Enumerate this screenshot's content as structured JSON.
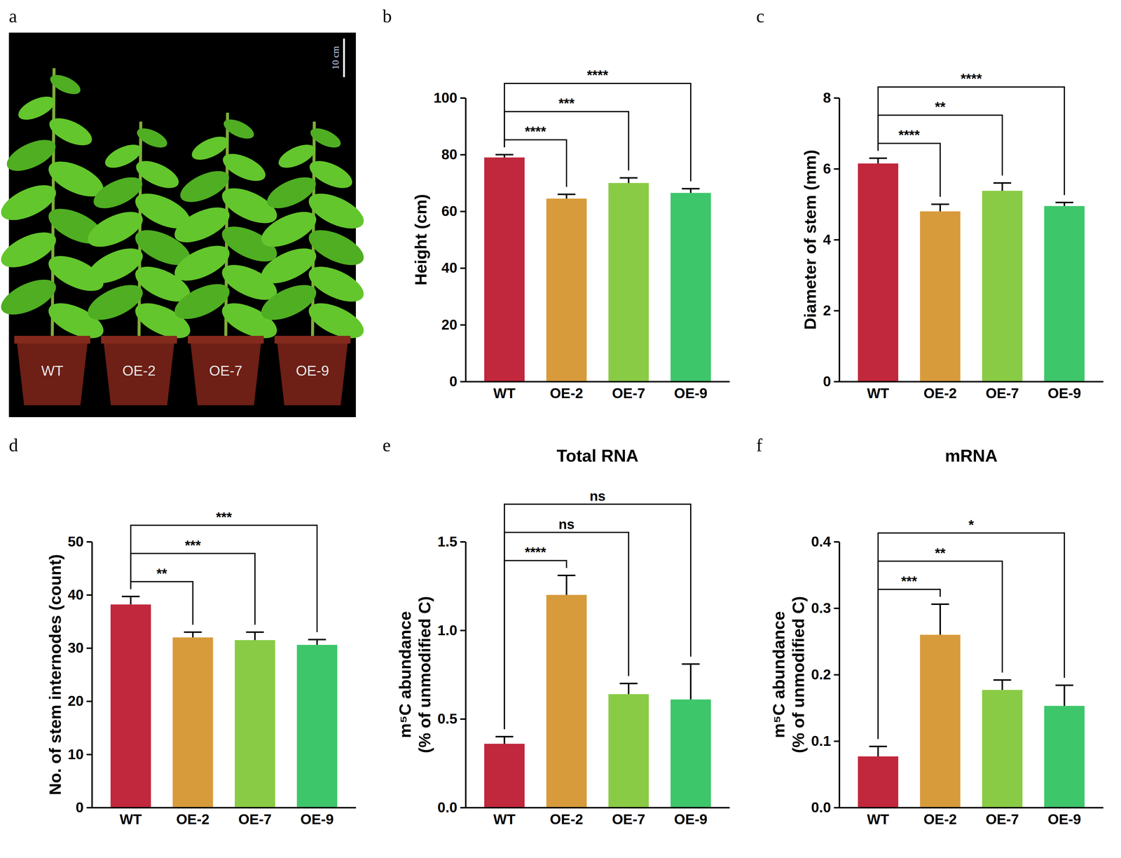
{
  "chart_data": [
    {
      "type": "photo",
      "panel": "a",
      "labels": [
        "WT",
        "OE-2",
        "OE-7",
        "OE-9"
      ],
      "scale_bar": "10 cm"
    },
    {
      "type": "bar",
      "panel": "b",
      "ylabel": "Height (cm)",
      "categories": [
        "WT",
        "OE-2",
        "OE-7",
        "OE-9"
      ],
      "values": [
        79,
        64.5,
        70,
        66.5
      ],
      "errors": [
        1,
        1.5,
        1.8,
        1.5
      ],
      "colors": [
        "#c1273d",
        "#d89b3b",
        "#8acb45",
        "#3ec66b"
      ],
      "ylim": [
        0,
        100
      ],
      "yticks": [
        0,
        20,
        40,
        60,
        80,
        100
      ],
      "grid": false,
      "annotations": [
        {
          "from": "WT",
          "to": "OE-2",
          "label": "****"
        },
        {
          "from": "WT",
          "to": "OE-7",
          "label": "***"
        },
        {
          "from": "WT",
          "to": "OE-9",
          "label": "****"
        }
      ]
    },
    {
      "type": "bar",
      "panel": "c",
      "ylabel": "Diameter of stem (mm)",
      "categories": [
        "WT",
        "OE-2",
        "OE-7",
        "OE-9"
      ],
      "values": [
        6.15,
        4.8,
        5.38,
        4.95
      ],
      "errors": [
        0.15,
        0.2,
        0.22,
        0.1
      ],
      "colors": [
        "#c1273d",
        "#d89b3b",
        "#8acb45",
        "#3ec66b"
      ],
      "ylim": [
        0,
        8
      ],
      "yticks": [
        0,
        2,
        4,
        6,
        8
      ],
      "grid": false,
      "annotations": [
        {
          "from": "WT",
          "to": "OE-2",
          "label": "****"
        },
        {
          "from": "WT",
          "to": "OE-7",
          "label": "**"
        },
        {
          "from": "WT",
          "to": "OE-9",
          "label": "****"
        }
      ]
    },
    {
      "type": "bar",
      "panel": "d",
      "ylabel": "No. of stem internodes (count)",
      "categories": [
        "WT",
        "OE-2",
        "OE-7",
        "OE-9"
      ],
      "values": [
        38.2,
        32,
        31.5,
        30.6
      ],
      "errors": [
        1.5,
        1,
        1.5,
        1
      ],
      "colors": [
        "#c1273d",
        "#d89b3b",
        "#8acb45",
        "#3ec66b"
      ],
      "ylim": [
        0,
        50
      ],
      "yticks": [
        0,
        10,
        20,
        30,
        40,
        50
      ],
      "grid": false,
      "annotations": [
        {
          "from": "WT",
          "to": "OE-2",
          "label": "**"
        },
        {
          "from": "WT",
          "to": "OE-7",
          "label": "***"
        },
        {
          "from": "WT",
          "to": "OE-9",
          "label": "***"
        }
      ]
    },
    {
      "type": "bar",
      "panel": "e",
      "title": "Total RNA",
      "ylabel": [
        "m⁵C abundance",
        "(% of unmodified C)"
      ],
      "categories": [
        "WT",
        "OE-2",
        "OE-7",
        "OE-9"
      ],
      "values": [
        0.36,
        1.2,
        0.64,
        0.61
      ],
      "errors": [
        0.04,
        0.11,
        0.06,
        0.2
      ],
      "colors": [
        "#c1273d",
        "#d89b3b",
        "#8acb45",
        "#3ec66b"
      ],
      "ylim": [
        0,
        1.5
      ],
      "yticks": [
        {
          "value": 0,
          "label": "0.0"
        },
        0.5,
        {
          "value": 1,
          "label": "1.0"
        },
        1.5
      ],
      "grid": false,
      "annotations": [
        {
          "from": "WT",
          "to": "OE-2",
          "label": "****"
        },
        {
          "from": "WT",
          "to": "OE-7",
          "label": "ns"
        },
        {
          "from": "WT",
          "to": "OE-9",
          "label": "ns"
        }
      ]
    },
    {
      "type": "bar",
      "panel": "f",
      "title": "mRNA",
      "ylabel": [
        "m⁵C abundance",
        "(% of unmodified C)"
      ],
      "categories": [
        "WT",
        "OE-2",
        "OE-7",
        "OE-9"
      ],
      "values": [
        0.077,
        0.26,
        0.177,
        0.153
      ],
      "errors": [
        0.015,
        0.046,
        0.015,
        0.031
      ],
      "colors": [
        "#c1273d",
        "#d89b3b",
        "#8acb45",
        "#3ec66b"
      ],
      "ylim": [
        0,
        0.4
      ],
      "yticks": [
        {
          "value": 0,
          "label": "0.0"
        },
        0.1,
        0.2,
        0.3,
        0.4
      ],
      "grid": false,
      "annotations": [
        {
          "from": "WT",
          "to": "OE-2",
          "label": "***"
        },
        {
          "from": "WT",
          "to": "OE-7",
          "label": "**"
        },
        {
          "from": "WT",
          "to": "OE-9",
          "label": "*"
        }
      ]
    }
  ]
}
